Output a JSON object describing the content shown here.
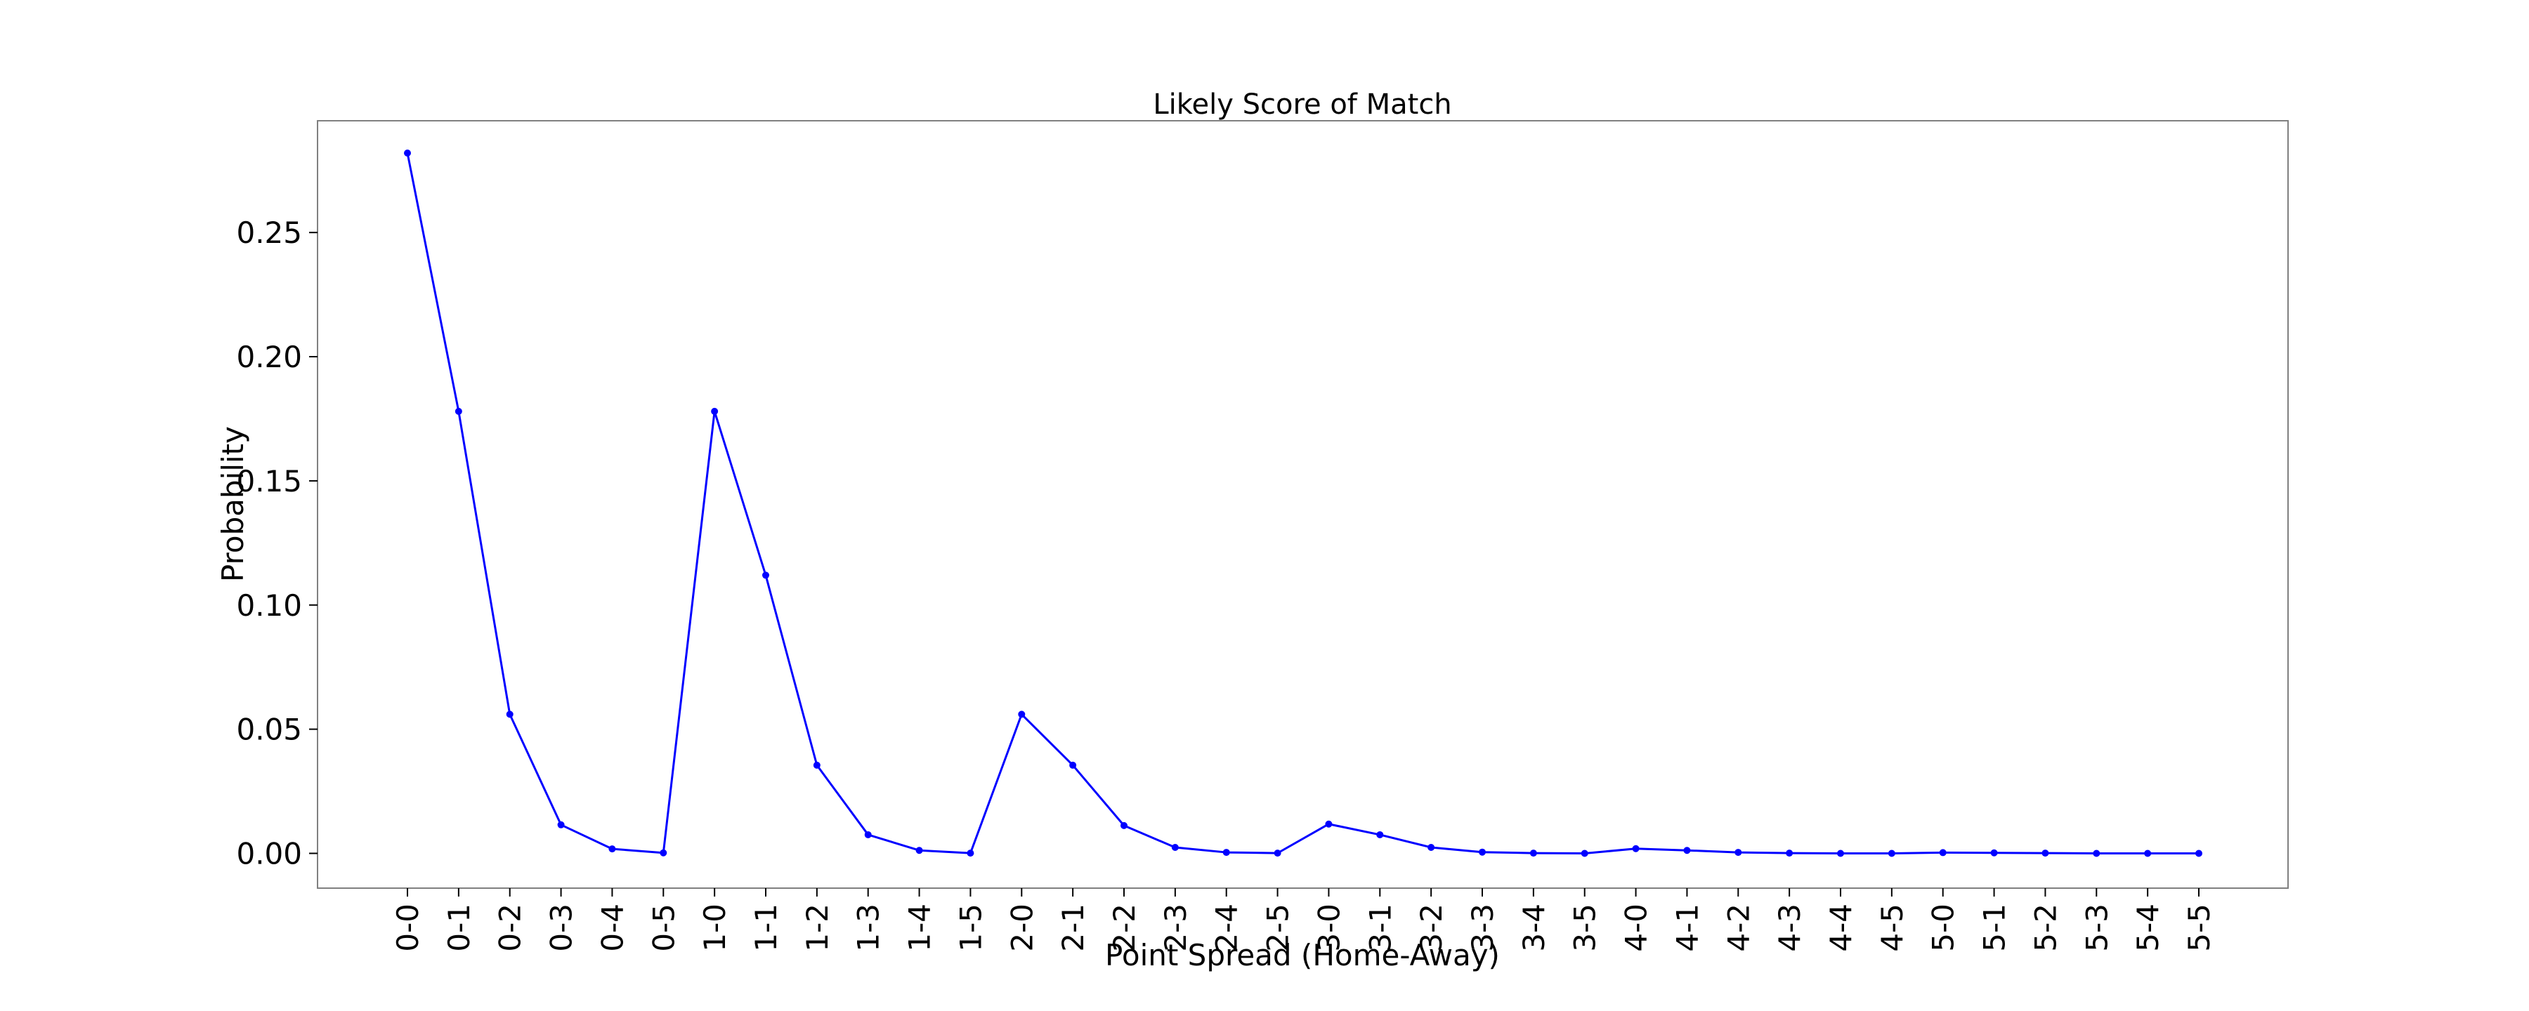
{
  "chart_data": {
    "type": "line",
    "title": "Likely Score of Match",
    "xlabel": "Point Spread (Home-Away)",
    "ylabel": "Probability",
    "categories": [
      "0-0",
      "0-1",
      "0-2",
      "0-3",
      "0-4",
      "0-5",
      "1-0",
      "1-1",
      "1-2",
      "1-3",
      "1-4",
      "1-5",
      "2-0",
      "2-1",
      "2-2",
      "2-3",
      "2-4",
      "2-5",
      "3-0",
      "3-1",
      "3-2",
      "3-3",
      "3-4",
      "3-5",
      "4-0",
      "4-1",
      "4-2",
      "4-3",
      "4-4",
      "4-5",
      "5-0",
      "5-1",
      "5-2",
      "5-3",
      "5-4",
      "5-5"
    ],
    "values": [
      0.282,
      0.178,
      0.056,
      0.0115,
      0.0018,
      0.0002,
      0.178,
      0.112,
      0.0355,
      0.0075,
      0.0012,
      0.0001,
      0.056,
      0.0355,
      0.0112,
      0.0024,
      0.0004,
      0.0001,
      0.0118,
      0.0075,
      0.0024,
      0.0005,
      0.0001,
      0.0,
      0.0019,
      0.0012,
      0.0004,
      0.0001,
      0.0,
      0.0,
      0.0003,
      0.0002,
      0.0001,
      0.0,
      0.0,
      0.0
    ],
    "yticks": [
      "0.00",
      "0.05",
      "0.10",
      "0.15",
      "0.20",
      "0.25"
    ],
    "ylim": [
      -0.014,
      0.295
    ],
    "grid": false,
    "color": "#0000ff"
  }
}
